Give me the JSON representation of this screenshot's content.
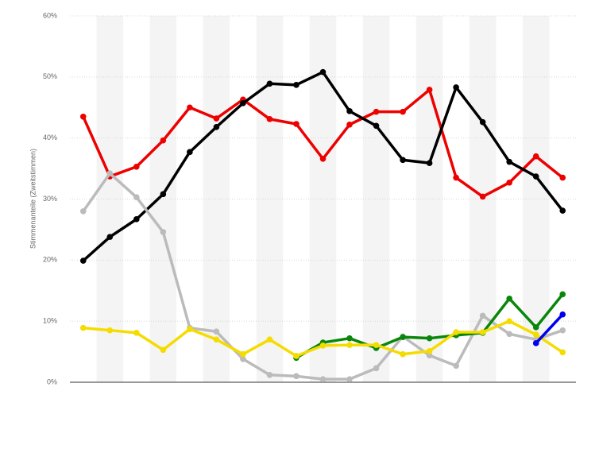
{
  "chart_data": {
    "type": "line",
    "y_label": "Stimmenanteile (Zweitstimmen)",
    "categories": [
      null,
      null,
      null,
      null,
      null,
      null,
      null,
      null,
      null,
      null,
      null,
      null,
      null,
      null,
      null,
      null,
      null,
      null,
      null
    ],
    "series": [
      {
        "color": "#ee0000",
        "values": [
          43.5,
          33.7,
          35.3,
          39.6,
          45.0,
          43.2,
          46.3,
          43.1,
          42.3,
          36.6,
          42.2,
          44.3,
          44.3,
          47.9,
          33.5,
          30.4,
          32.7,
          37.0,
          33.5
        ]
      },
      {
        "color": "#000000",
        "values": [
          19.9,
          23.8,
          26.7,
          30.8,
          37.7,
          41.8,
          45.7,
          48.9,
          48.7,
          50.8,
          44.4,
          42.0,
          36.4,
          35.9,
          48.3,
          42.6,
          36.1,
          33.7,
          28.1
        ]
      },
      {
        "color": "#bbbbbb",
        "values": [
          28.0,
          34.2,
          30.3,
          24.6,
          8.9,
          8.3,
          3.8,
          1.2,
          1.0,
          0.5,
          0.5,
          2.3,
          7.5,
          4.4,
          2.7,
          10.9,
          7.9,
          7.0,
          8.5
        ]
      },
      {
        "color": "#0a870a",
        "values": [
          null,
          null,
          null,
          null,
          null,
          null,
          null,
          null,
          4.0,
          6.5,
          7.2,
          5.6,
          7.4,
          7.2,
          7.7,
          8.1,
          13.7,
          9.0,
          14.4
        ]
      },
      {
        "color": "#f5dc00",
        "values": [
          8.9,
          8.5,
          8.1,
          5.3,
          8.7,
          7.0,
          4.6,
          7.0,
          4.3,
          6.0,
          6.1,
          6.1,
          4.6,
          5.1,
          8.2,
          8.2,
          10.0,
          7.8,
          4.9
        ]
      },
      {
        "color": "#0000ee",
        "values": [
          null,
          null,
          null,
          null,
          null,
          null,
          null,
          null,
          null,
          null,
          null,
          null,
          null,
          null,
          null,
          null,
          null,
          6.4,
          11.1
        ]
      }
    ],
    "ylim": [
      0,
      60
    ],
    "yticks": [
      {
        "value": 0,
        "label": "0%"
      },
      {
        "value": 10,
        "label": "10%"
      },
      {
        "value": 20,
        "label": "20%"
      },
      {
        "value": 30,
        "label": "30%"
      },
      {
        "value": 40,
        "label": "40%"
      },
      {
        "value": 50,
        "label": "50%"
      },
      {
        "value": 60,
        "label": "60%"
      }
    ],
    "grid": true
  }
}
